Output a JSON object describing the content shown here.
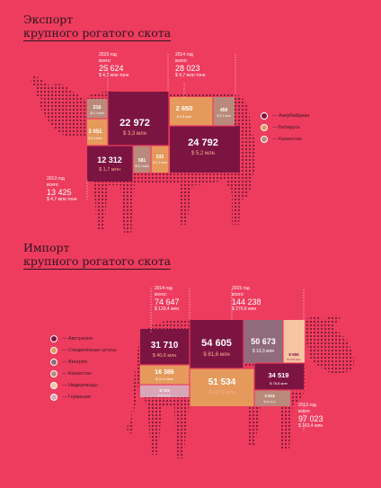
{
  "export": {
    "title_line1": "Экспорт",
    "title_line2": "крупного рогатого скота",
    "year2015": {
      "label": "2015 год",
      "sub": "всего:",
      "total": "25 624",
      "money": "$ 4,7 млн тонн"
    },
    "year2014": {
      "label": "2014 год",
      "sub": "всего:",
      "total": "28 023",
      "money": "$ 4,7 млн тонн"
    },
    "year2013": {
      "label": "2013 год",
      "sub": "всего:",
      "total": "13 425",
      "money": "$ 4,7 млн тонн"
    },
    "cells": [
      {
        "value": "22 972",
        "money": "$ 3,3 млн"
      },
      {
        "value": "316",
        "money": "$ 0,1 млн"
      },
      {
        "value": "2 051",
        "money": "$ 0,4 млн"
      },
      {
        "value": "2 650",
        "money": "$ 0,6 млн"
      },
      {
        "value": "458",
        "money": "$ 0,1 млн"
      },
      {
        "value": "24 792",
        "money": "$ 5,2 млн"
      },
      {
        "value": "12 312",
        "money": "$ 1,7 млн"
      },
      {
        "value": "581",
        "money": "$ 0,1 млн"
      },
      {
        "value": "532",
        "money": "$ 0,1 млн"
      }
    ],
    "legend": [
      {
        "label": "— Азербайджан",
        "color": "#7c1442"
      },
      {
        "label": "— Беларусь",
        "color": "#e59a5c"
      },
      {
        "label": "— Казахстан",
        "color": "#b98a7c"
      }
    ]
  },
  "import": {
    "title_line1": "Импорт",
    "title_line2": "крупного рогатого скота",
    "year2014": {
      "label": "2014 год",
      "sub": "всего:",
      "total": "74 647",
      "money": "$ 133,4 млн"
    },
    "year2015": {
      "label": "2015 год",
      "sub": "всего:",
      "total": "144 238",
      "money": "$ 270,6 млн"
    },
    "year2013": {
      "label": "2013 год",
      "sub": "всего:",
      "total": "97 023",
      "money": "$ 163,4 млн"
    },
    "cells": [
      {
        "value": "31 710",
        "money": "$ 40,6 млн"
      },
      {
        "value": "54 605",
        "money": "$ 81,6 млн"
      },
      {
        "value": "50 673",
        "money": "$ 13,3 млн"
      },
      {
        "value": "16 386",
        "money": "$ 21,0 млн"
      },
      {
        "value": "51 534",
        "money": "$ 117,6 млн"
      },
      {
        "value": "34 519",
        "money": "$ 78,8 млн"
      },
      {
        "value": "9 723",
        "money": "$ 13,2 млн"
      },
      {
        "value": "3 513",
        "money": "$ 5,2 млн"
      },
      {
        "value": "8 956",
        "money": "$ 13,8 млн"
      }
    ],
    "legend": [
      {
        "label": "— Австралия",
        "color": "#7c1442"
      },
      {
        "label": "— Соединённые штаты",
        "color": "#e59a5c"
      },
      {
        "label": "— Венгрия",
        "color": "#8f6b7c"
      },
      {
        "label": "— Казахстан",
        "color": "#b98a7c"
      },
      {
        "label": "— Нидерланды",
        "color": "#f5c4a0"
      },
      {
        "label": "— Германия",
        "color": "#d9a6b8"
      }
    ]
  }
}
